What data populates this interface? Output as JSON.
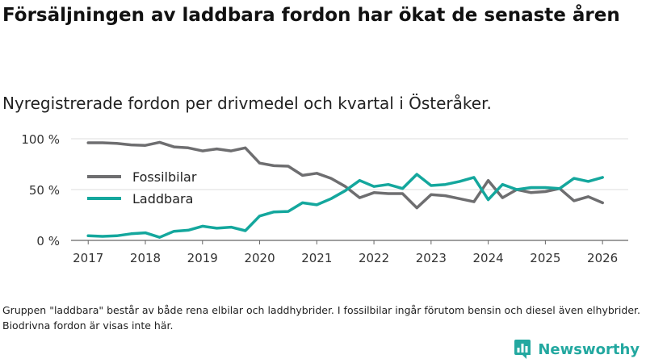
{
  "title": "Försäljningen av laddbara fordon har ökat de senaste åren",
  "subtitle": "Nyregistrerade fordon per drivmedel och kvartal i Österåker.",
  "note": "Gruppen \"laddbara\" består av både rena elbilar och laddhybrider. I fossilbilar ingår förutom bensin och diesel även elhybrider. Biodrivna fordon är visas inte här.",
  "brand": {
    "name": "Newsworthy",
    "icon": "bar-chart-icon",
    "color": "#23a8a0"
  },
  "chart_data": {
    "type": "line",
    "title": "Nyregistrerade fordon per drivmedel och kvartal i Österåker.",
    "xlabel": "",
    "ylabel": "",
    "xlim": [
      2016.7,
      2026.45
    ],
    "ylim": [
      0,
      100
    ],
    "x_ticks": [
      2017,
      2018,
      2019,
      2020,
      2021,
      2022,
      2023,
      2024,
      2025,
      2026
    ],
    "x_tick_labels": [
      "2017",
      "2018",
      "2019",
      "2020",
      "2021",
      "2022",
      "2023",
      "2024",
      "2025",
      "2026"
    ],
    "y_ticks": [
      0,
      50,
      100
    ],
    "y_tick_labels": [
      "0 %",
      "50 %",
      "100 %"
    ],
    "grid": "horizontal",
    "legend_position": "left-middle",
    "x": [
      2017.0,
      2017.25,
      2017.5,
      2017.75,
      2018.0,
      2018.25,
      2018.5,
      2018.75,
      2019.0,
      2019.25,
      2019.5,
      2019.75,
      2020.0,
      2020.25,
      2020.5,
      2020.75,
      2021.0,
      2021.25,
      2021.5,
      2021.75,
      2022.0,
      2022.25,
      2022.5,
      2022.75,
      2023.0,
      2023.25,
      2023.5,
      2023.75,
      2024.0,
      2024.25,
      2024.5,
      2024.75,
      2025.0,
      2025.25,
      2025.5,
      2025.75,
      2026.0
    ],
    "series": [
      {
        "name": "Fossilbilar",
        "color": "#6e6e70",
        "values": [
          96,
          96,
          95.5,
          94,
          93.5,
          96.5,
          92,
          91,
          88,
          90,
          88,
          91,
          76,
          73.5,
          73,
          64,
          66,
          61,
          53,
          42,
          47,
          46,
          46,
          32,
          45,
          44,
          41,
          38,
          59,
          42,
          50,
          47,
          48,
          51,
          39,
          43,
          37
        ]
      },
      {
        "name": "Laddbara",
        "color": "#14a79d",
        "values": [
          4.5,
          4,
          4.5,
          6.5,
          7.5,
          3,
          9,
          10,
          14,
          12,
          13,
          9.5,
          24,
          28,
          28.5,
          37,
          35,
          41,
          49,
          59,
          53,
          55,
          51,
          65,
          54,
          55,
          58,
          62,
          40,
          55,
          50,
          52,
          52,
          51,
          61,
          58,
          62
        ]
      }
    ]
  }
}
